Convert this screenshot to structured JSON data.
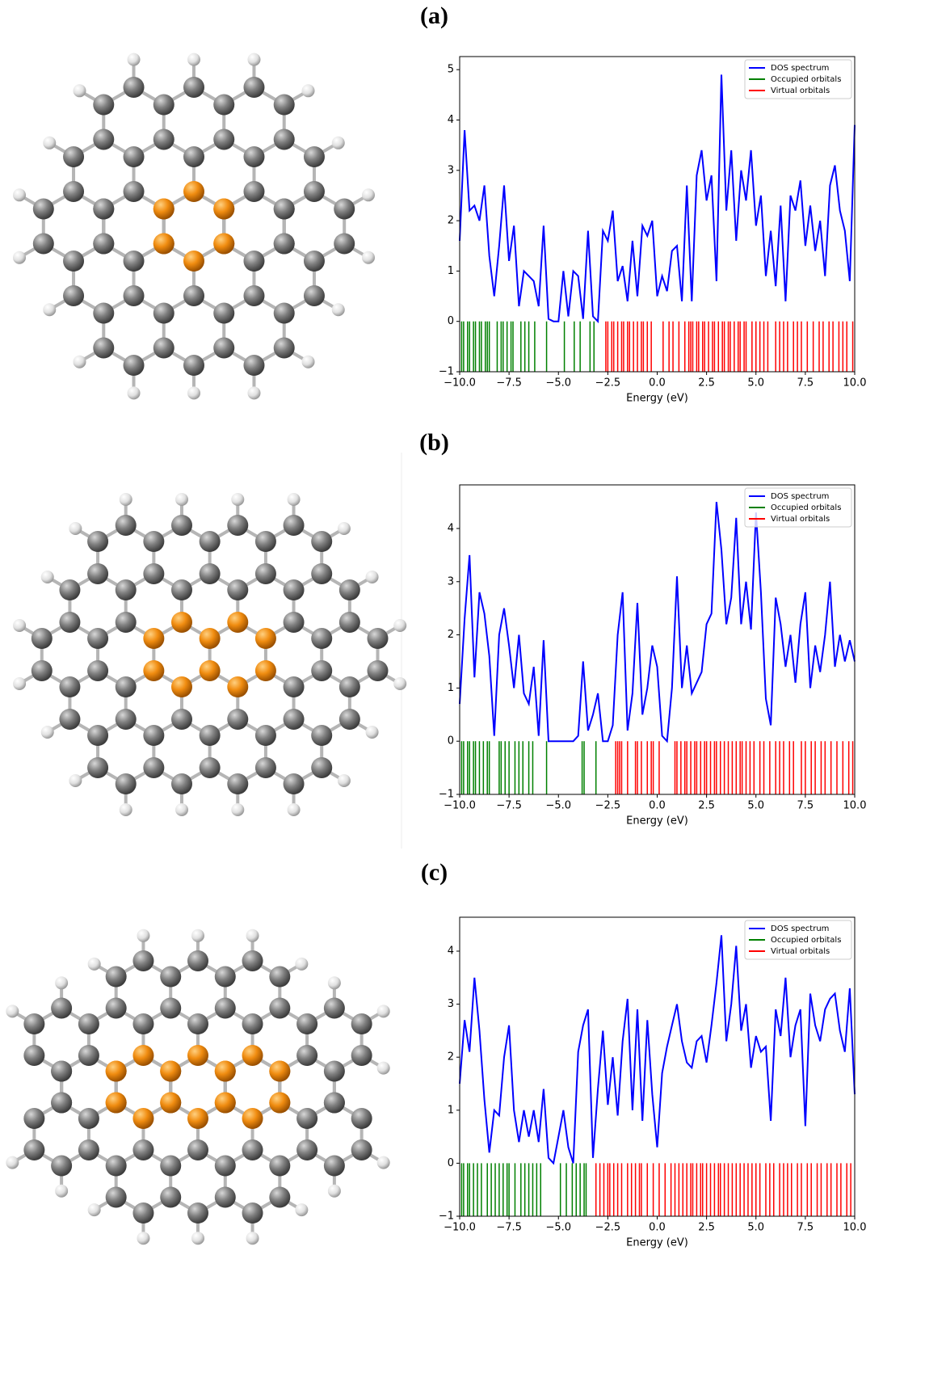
{
  "chart_data": [
    {
      "type": "line",
      "title": "(a)",
      "xlabel": "Energy (eV)",
      "legend": "upper right",
      "xlim": [
        -10,
        10
      ],
      "ylim": [
        -1,
        5.26
      ],
      "xticks": [
        {
          "value": -10,
          "label": "−10.0"
        },
        {
          "value": -7.5,
          "label": "−7.5"
        },
        {
          "value": -5,
          "label": "−5.0"
        },
        {
          "value": -2.5,
          "label": "−2.5"
        },
        {
          "value": 0,
          "label": "0.0"
        },
        2.5,
        {
          "value": 5,
          "label": "5.0"
        },
        7.5,
        {
          "value": 10,
          "label": "10.0"
        }
      ],
      "yticks": [
        {
          "value": -1,
          "label": "−1"
        },
        0,
        1,
        2,
        3,
        4,
        5
      ],
      "x": [
        -10,
        -9.75,
        -9.5,
        -9.25,
        -9,
        -8.75,
        -8.5,
        -8.25,
        -8,
        -7.75,
        -7.5,
        -7.25,
        -7,
        -6.75,
        -6.5,
        -6.25,
        -6,
        -5.75,
        -5.5,
        -5.25,
        -5,
        -4.75,
        -4.5,
        -4.25,
        -4,
        -3.75,
        -3.5,
        -3.25,
        -3,
        -2.75,
        -2.5,
        -2.25,
        -2,
        -1.75,
        -1.5,
        -1.25,
        -1,
        -0.75,
        -0.5,
        -0.25,
        0,
        0.25,
        0.5,
        0.75,
        1,
        1.25,
        1.5,
        1.75,
        2,
        2.25,
        2.5,
        2.75,
        3,
        3.25,
        3.5,
        3.75,
        4,
        4.25,
        4.5,
        4.75,
        5,
        5.25,
        5.5,
        5.75,
        6,
        6.25,
        6.5,
        6.75,
        7,
        7.25,
        7.5,
        7.75,
        8,
        8.25,
        8.5,
        8.75,
        9,
        9.25,
        9.5,
        9.75,
        10
      ],
      "series": [
        {
          "name": "DOS spectrum",
          "color": "#0000ff",
          "values": [
            1.6,
            3.8,
            2.2,
            2.3,
            2.0,
            2.7,
            1.3,
            0.5,
            1.5,
            2.7,
            1.2,
            1.9,
            0.3,
            1.0,
            0.9,
            0.8,
            0.3,
            1.9,
            0.05,
            0,
            0,
            1.0,
            0.1,
            1.0,
            0.9,
            0.05,
            1.8,
            0.1,
            0,
            1.8,
            1.6,
            2.2,
            0.8,
            1.1,
            0.4,
            1.6,
            0.5,
            1.9,
            1.7,
            2.0,
            0.5,
            0.9,
            0.6,
            1.4,
            1.5,
            0.4,
            2.7,
            0.4,
            2.9,
            3.4,
            2.4,
            2.9,
            0.8,
            4.9,
            2.2,
            3.4,
            1.6,
            3.0,
            2.4,
            3.4,
            1.9,
            2.5,
            0.9,
            1.8,
            0.7,
            2.3,
            0.4,
            2.5,
            2.2,
            2.8,
            1.5,
            2.3,
            1.4,
            2.0,
            0.9,
            2.7,
            3.1,
            2.2,
            1.8,
            0.8,
            3.9
          ]
        },
        {
          "name": "Occupied orbitals",
          "color": "#008000",
          "energies": [
            -9.9,
            -9.8,
            -9.6,
            -9.5,
            -9.3,
            -9.2,
            -9.0,
            -8.9,
            -8.7,
            -8.6,
            -8.5,
            -8.1,
            -7.9,
            -7.8,
            -7.6,
            -7.4,
            -7.3,
            -6.9,
            -6.7,
            -6.5,
            -6.2,
            -5.6,
            -4.7,
            -4.2,
            -3.9,
            -3.4,
            -3.2
          ]
        },
        {
          "name": "Virtual orbitals",
          "color": "#ff0000",
          "energies": [
            -2.6,
            -2.5,
            -2.3,
            -2.2,
            -2.0,
            -1.8,
            -1.7,
            -1.5,
            -1.4,
            -1.2,
            -1.0,
            -0.8,
            -0.7,
            -0.5,
            -0.3,
            0.3,
            0.6,
            0.8,
            1.1,
            1.4,
            1.6,
            1.7,
            1.8,
            2.0,
            2.1,
            2.3,
            2.4,
            2.6,
            2.8,
            2.9,
            3.1,
            3.3,
            3.4,
            3.6,
            3.7,
            3.9,
            4.1,
            4.2,
            4.4,
            4.5,
            4.8,
            5.0,
            5.2,
            5.4,
            5.6,
            6.0,
            6.2,
            6.4,
            6.6,
            6.9,
            7.1,
            7.3,
            7.6,
            7.9,
            8.2,
            8.4,
            8.7,
            8.9,
            9.2,
            9.4,
            9.6,
            9.9
          ]
        }
      ]
    },
    {
      "type": "line",
      "title": "(b)",
      "xlabel": "Energy (eV)",
      "legend": "upper right",
      "xlim": [
        -10,
        10
      ],
      "ylim": [
        -1,
        4.82
      ],
      "xticks": [
        {
          "value": -10,
          "label": "−10.0"
        },
        {
          "value": -7.5,
          "label": "−7.5"
        },
        {
          "value": -5,
          "label": "−5.0"
        },
        {
          "value": -2.5,
          "label": "−2.5"
        },
        {
          "value": 0,
          "label": "0.0"
        },
        2.5,
        {
          "value": 5,
          "label": "5.0"
        },
        7.5,
        {
          "value": 10,
          "label": "10.0"
        }
      ],
      "yticks": [
        {
          "value": -1,
          "label": "−1"
        },
        0,
        1,
        2,
        3,
        4
      ],
      "x": [
        -10,
        -9.75,
        -9.5,
        -9.25,
        -9,
        -8.75,
        -8.5,
        -8.25,
        -8,
        -7.75,
        -7.5,
        -7.25,
        -7,
        -6.75,
        -6.5,
        -6.25,
        -6,
        -5.75,
        -5.5,
        -5.25,
        -5,
        -4.75,
        -4.5,
        -4.25,
        -4,
        -3.75,
        -3.5,
        -3.25,
        -3,
        -2.75,
        -2.5,
        -2.25,
        -2,
        -1.75,
        -1.5,
        -1.25,
        -1,
        -0.75,
        -0.5,
        -0.25,
        0,
        0.25,
        0.5,
        0.75,
        1,
        1.25,
        1.5,
        1.75,
        2,
        2.25,
        2.5,
        2.75,
        3,
        3.25,
        3.5,
        3.75,
        4,
        4.25,
        4.5,
        4.75,
        5,
        5.25,
        5.5,
        5.75,
        6,
        6.25,
        6.5,
        6.75,
        7,
        7.25,
        7.5,
        7.75,
        8,
        8.25,
        8.5,
        8.75,
        9,
        9.25,
        9.5,
        9.75,
        10
      ],
      "series": [
        {
          "name": "DOS spectrum",
          "color": "#0000ff",
          "values": [
            0.7,
            2.3,
            3.5,
            1.2,
            2.8,
            2.4,
            1.6,
            0.1,
            2.0,
            2.5,
            1.8,
            1.0,
            2.0,
            0.9,
            0.7,
            1.4,
            0.1,
            1.9,
            0,
            0,
            0,
            0,
            0,
            0,
            0.1,
            1.5,
            0.2,
            0.5,
            0.9,
            0,
            0,
            0.3,
            2.0,
            2.8,
            0.2,
            0.9,
            2.6,
            0.5,
            1.0,
            1.8,
            1.4,
            0.1,
            0,
            1.0,
            3.1,
            1.0,
            1.8,
            0.9,
            1.1,
            1.3,
            2.2,
            2.4,
            4.5,
            3.6,
            2.2,
            2.7,
            4.2,
            2.2,
            3.0,
            2.1,
            4.3,
            2.8,
            0.8,
            0.3,
            2.7,
            2.2,
            1.4,
            2.0,
            1.1,
            2.2,
            2.8,
            1.0,
            1.8,
            1.3,
            2.0,
            3.0,
            1.4,
            2.0,
            1.5,
            1.9,
            1.5
          ]
        },
        {
          "name": "Occupied orbitals",
          "color": "#008000",
          "energies": [
            -9.9,
            -9.8,
            -9.6,
            -9.5,
            -9.3,
            -9.2,
            -9.0,
            -8.8,
            -8.6,
            -8.5,
            -8.0,
            -7.9,
            -7.7,
            -7.5,
            -7.2,
            -7.0,
            -6.8,
            -6.5,
            -6.3,
            -5.6,
            -3.8,
            -3.7,
            -3.1
          ]
        },
        {
          "name": "Virtual orbitals",
          "color": "#ff0000",
          "energies": [
            -2.1,
            -2.0,
            -1.9,
            -1.8,
            -1.5,
            -1.1,
            -1.0,
            -0.8,
            -0.5,
            -0.3,
            -0.2,
            0.1,
            0.9,
            1.0,
            1.2,
            1.4,
            1.5,
            1.7,
            1.9,
            2.0,
            2.2,
            2.4,
            2.5,
            2.7,
            2.9,
            3.0,
            3.2,
            3.4,
            3.6,
            3.8,
            4.0,
            4.2,
            4.3,
            4.5,
            4.7,
            4.9,
            5.2,
            5.4,
            5.7,
            6.0,
            6.2,
            6.4,
            6.7,
            6.9,
            7.3,
            7.5,
            7.8,
            8.0,
            8.3,
            8.5,
            8.8,
            9.1,
            9.4,
            9.7,
            9.9
          ]
        }
      ]
    },
    {
      "type": "line",
      "title": "(c)",
      "xlabel": "Energy (eV)",
      "legend": "upper right",
      "xlim": [
        -10,
        10
      ],
      "ylim": [
        -1,
        4.64
      ],
      "xticks": [
        {
          "value": -10,
          "label": "−10.0"
        },
        {
          "value": -7.5,
          "label": "−7.5"
        },
        {
          "value": -5,
          "label": "−5.0"
        },
        {
          "value": -2.5,
          "label": "−2.5"
        },
        {
          "value": 0,
          "label": "0.0"
        },
        2.5,
        {
          "value": 5,
          "label": "5.0"
        },
        7.5,
        {
          "value": 10,
          "label": "10.0"
        }
      ],
      "yticks": [
        {
          "value": -1,
          "label": "−1"
        },
        0,
        1,
        2,
        3,
        4
      ],
      "x": [
        -10,
        -9.75,
        -9.5,
        -9.25,
        -9,
        -8.75,
        -8.5,
        -8.25,
        -8,
        -7.75,
        -7.5,
        -7.25,
        -7,
        -6.75,
        -6.5,
        -6.25,
        -6,
        -5.75,
        -5.5,
        -5.25,
        -5,
        -4.75,
        -4.5,
        -4.25,
        -4,
        -3.75,
        -3.5,
        -3.25,
        -3,
        -2.75,
        -2.5,
        -2.25,
        -2,
        -1.75,
        -1.5,
        -1.25,
        -1,
        -0.75,
        -0.5,
        -0.25,
        0,
        0.25,
        0.5,
        0.75,
        1,
        1.25,
        1.5,
        1.75,
        2,
        2.25,
        2.5,
        2.75,
        3,
        3.25,
        3.5,
        3.75,
        4,
        4.25,
        4.5,
        4.75,
        5,
        5.25,
        5.5,
        5.75,
        6,
        6.25,
        6.5,
        6.75,
        7,
        7.25,
        7.5,
        7.75,
        8,
        8.25,
        8.5,
        8.75,
        9,
        9.25,
        9.5,
        9.75,
        10
      ],
      "series": [
        {
          "name": "DOS spectrum",
          "color": "#0000ff",
          "values": [
            1.5,
            2.7,
            2.1,
            3.5,
            2.5,
            1.2,
            0.2,
            1.0,
            0.9,
            2.0,
            2.6,
            1.0,
            0.4,
            1.0,
            0.5,
            1.0,
            0.4,
            1.4,
            0.1,
            0,
            0.5,
            1.0,
            0.3,
            0,
            2.1,
            2.6,
            2.9,
            0.1,
            1.4,
            2.5,
            1.1,
            2.0,
            0.9,
            2.3,
            3.1,
            1.0,
            2.9,
            0.8,
            2.7,
            1.3,
            0.3,
            1.7,
            2.2,
            2.6,
            3.0,
            2.3,
            1.9,
            1.8,
            2.3,
            2.4,
            1.9,
            2.6,
            3.4,
            4.3,
            2.3,
            3.0,
            4.1,
            2.5,
            3.0,
            1.8,
            2.4,
            2.1,
            2.2,
            0.8,
            2.9,
            2.4,
            3.5,
            2.0,
            2.6,
            2.9,
            0.7,
            3.2,
            2.6,
            2.3,
            2.9,
            3.1,
            3.2,
            2.5,
            2.1,
            3.3,
            1.3
          ]
        },
        {
          "name": "Occupied orbitals",
          "color": "#008000",
          "energies": [
            -9.9,
            -9.8,
            -9.6,
            -9.5,
            -9.3,
            -9.1,
            -8.9,
            -8.6,
            -8.4,
            -8.2,
            -8.0,
            -7.8,
            -7.6,
            -7.5,
            -7.2,
            -6.9,
            -6.7,
            -6.5,
            -6.3,
            -6.1,
            -5.9,
            -4.9,
            -4.6,
            -4.3,
            -4.1,
            -3.9,
            -3.7,
            -3.6
          ]
        },
        {
          "name": "Virtual orbitals",
          "color": "#ff0000",
          "energies": [
            -3.1,
            -2.9,
            -2.7,
            -2.5,
            -2.4,
            -2.2,
            -2.0,
            -1.8,
            -1.5,
            -1.3,
            -1.1,
            -0.9,
            -0.8,
            -0.5,
            -0.2,
            0.1,
            0.4,
            0.7,
            0.9,
            1.1,
            1.3,
            1.5,
            1.7,
            1.8,
            2.0,
            2.2,
            2.3,
            2.5,
            2.7,
            2.9,
            3.1,
            3.2,
            3.4,
            3.6,
            3.8,
            4.0,
            4.2,
            4.4,
            4.6,
            4.8,
            5.0,
            5.2,
            5.5,
            5.7,
            5.9,
            6.2,
            6.4,
            6.6,
            6.8,
            7.1,
            7.3,
            7.6,
            7.8,
            8.1,
            8.3,
            8.6,
            8.8,
            9.1,
            9.3,
            9.6,
            9.8
          ]
        }
      ]
    }
  ]
}
